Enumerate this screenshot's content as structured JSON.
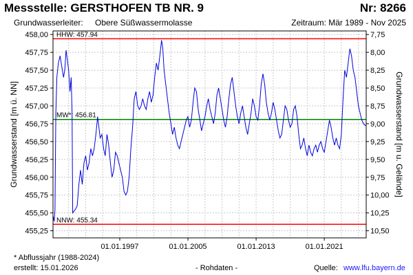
{
  "header": {
    "title": "Messstelle: GERSTHOFEN TB NR. 9",
    "nr": "Nr: 8266",
    "aquifer_label": "Grundwasserleiter:",
    "aquifer_value": "Obere Süßwassermolasse",
    "period": "Zeitraum: Mär 1989 - Nov 2025"
  },
  "footer": {
    "footnote": "* Abflussjahr (1988-2024)",
    "created": "erstellt:  15.01.2026",
    "rawdata": "- Rohdaten -",
    "source_label": "Quelle:",
    "source_link": "www.lfu.bayern.de"
  },
  "colors": {
    "series": "#0000dd",
    "hhw_nnw": "#ff0000",
    "mw": "#008000",
    "grid": "#c8c8c8",
    "link": "#1a1aff"
  },
  "chart_data": {
    "type": "line",
    "ylabel": "Grundwasserstand [m ü. NN]",
    "y2label": "Grundwasserstand [m u. Gelände]",
    "ylim": [
      455.15,
      458.05
    ],
    "y2lim": [
      10.6,
      7.7
    ],
    "grid": true,
    "y_ticks": [
      "455,25",
      "455,50",
      "455,75",
      "456,00",
      "456,25",
      "456,50",
      "456,75",
      "457,00",
      "457,25",
      "457,50",
      "457,75",
      "458,00"
    ],
    "y2_ticks": [
      "7,75",
      "8,00",
      "8,25",
      "8,50",
      "8,75",
      "9,00",
      "9,25",
      "9,50",
      "9,75",
      "10,00",
      "10,25",
      "10,50"
    ],
    "x_ticks": [
      "01.01.1997",
      "01.01.2005",
      "01.01.2013",
      "01.01.2021"
    ],
    "x_range": [
      "1989-03",
      "2025-11"
    ],
    "reference_lines": [
      {
        "label": "HHW: 457.94",
        "value": 457.94
      },
      {
        "label": "MW*: 456.81",
        "value": 456.81
      },
      {
        "label": "NNW: 455.34",
        "value": 455.34
      }
    ],
    "series": [
      {
        "points": [
          [
            1989.2,
            455.45
          ],
          [
            1989.3,
            455.38
          ],
          [
            1989.4,
            455.55
          ],
          [
            1989.5,
            456.9
          ],
          [
            1989.62,
            457.4
          ],
          [
            1989.8,
            457.6
          ],
          [
            1990.0,
            457.7
          ],
          [
            1990.2,
            457.55
          ],
          [
            1990.4,
            457.4
          ],
          [
            1990.55,
            457.5
          ],
          [
            1990.7,
            457.78
          ],
          [
            1990.85,
            457.65
          ],
          [
            1991.0,
            457.5
          ],
          [
            1991.15,
            457.2
          ],
          [
            1991.3,
            457.4
          ],
          [
            1991.4,
            456.9
          ],
          [
            1991.48,
            455.5
          ],
          [
            1991.6,
            455.52
          ],
          [
            1991.8,
            455.55
          ],
          [
            1992.0,
            455.6
          ],
          [
            1992.2,
            455.9
          ],
          [
            1992.4,
            456.1
          ],
          [
            1992.6,
            455.9
          ],
          [
            1992.8,
            456.2
          ],
          [
            1993.0,
            456.3
          ],
          [
            1993.2,
            456.1
          ],
          [
            1993.4,
            456.2
          ],
          [
            1993.6,
            456.4
          ],
          [
            1993.8,
            456.3
          ],
          [
            1994.0,
            456.4
          ],
          [
            1994.2,
            456.6
          ],
          [
            1994.4,
            456.85
          ],
          [
            1994.55,
            456.7
          ],
          [
            1994.7,
            456.55
          ],
          [
            1994.9,
            456.6
          ],
          [
            1995.1,
            456.4
          ],
          [
            1995.3,
            456.3
          ],
          [
            1995.5,
            456.6
          ],
          [
            1995.7,
            456.45
          ],
          [
            1995.9,
            456.2
          ],
          [
            1996.1,
            456.0
          ],
          [
            1996.3,
            456.1
          ],
          [
            1996.5,
            456.35
          ],
          [
            1996.7,
            456.3
          ],
          [
            1996.9,
            456.2
          ],
          [
            1997.1,
            456.1
          ],
          [
            1997.3,
            456.0
          ],
          [
            1997.5,
            455.8
          ],
          [
            1997.7,
            455.75
          ],
          [
            1997.9,
            455.8
          ],
          [
            1998.1,
            456.0
          ],
          [
            1998.3,
            456.4
          ],
          [
            1998.5,
            456.7
          ],
          [
            1998.7,
            457.1
          ],
          [
            1998.9,
            457.2
          ],
          [
            1999.1,
            457.0
          ],
          [
            1999.3,
            456.95
          ],
          [
            1999.5,
            457.0
          ],
          [
            1999.7,
            457.1
          ],
          [
            1999.9,
            457.0
          ],
          [
            2000.1,
            456.95
          ],
          [
            2000.3,
            457.1
          ],
          [
            2000.5,
            457.2
          ],
          [
            2000.7,
            457.05
          ],
          [
            2000.9,
            457.15
          ],
          [
            2001.1,
            457.4
          ],
          [
            2001.3,
            457.6
          ],
          [
            2001.5,
            457.5
          ],
          [
            2001.7,
            457.7
          ],
          [
            2001.9,
            457.92
          ],
          [
            2002.05,
            457.8
          ],
          [
            2002.2,
            457.5
          ],
          [
            2002.4,
            457.3
          ],
          [
            2002.6,
            457.1
          ],
          [
            2002.8,
            456.9
          ],
          [
            2003.0,
            456.75
          ],
          [
            2003.2,
            456.6
          ],
          [
            2003.4,
            456.7
          ],
          [
            2003.6,
            456.55
          ],
          [
            2003.8,
            456.45
          ],
          [
            2004.0,
            456.4
          ],
          [
            2004.2,
            456.5
          ],
          [
            2004.4,
            456.6
          ],
          [
            2004.6,
            456.7
          ],
          [
            2004.8,
            456.8
          ],
          [
            2005.0,
            456.85
          ],
          [
            2005.2,
            456.7
          ],
          [
            2005.4,
            456.8
          ],
          [
            2005.6,
            457.05
          ],
          [
            2005.8,
            457.25
          ],
          [
            2006.0,
            457.2
          ],
          [
            2006.2,
            456.95
          ],
          [
            2006.4,
            456.8
          ],
          [
            2006.6,
            456.65
          ],
          [
            2006.8,
            456.75
          ],
          [
            2007.0,
            456.85
          ],
          [
            2007.2,
            457.0
          ],
          [
            2007.4,
            457.1
          ],
          [
            2007.6,
            456.95
          ],
          [
            2007.8,
            456.85
          ],
          [
            2008.0,
            456.75
          ],
          [
            2008.2,
            456.9
          ],
          [
            2008.4,
            457.15
          ],
          [
            2008.6,
            457.25
          ],
          [
            2008.8,
            457.1
          ],
          [
            2009.0,
            456.95
          ],
          [
            2009.2,
            456.8
          ],
          [
            2009.4,
            456.7
          ],
          [
            2009.6,
            456.85
          ],
          [
            2009.8,
            457.1
          ],
          [
            2010.0,
            457.3
          ],
          [
            2010.2,
            457.4
          ],
          [
            2010.4,
            457.2
          ],
          [
            2010.6,
            457.0
          ],
          [
            2010.8,
            456.85
          ],
          [
            2011.0,
            456.75
          ],
          [
            2011.2,
            456.9
          ],
          [
            2011.4,
            457.0
          ],
          [
            2011.6,
            456.85
          ],
          [
            2011.8,
            456.7
          ],
          [
            2012.0,
            456.6
          ],
          [
            2012.2,
            456.75
          ],
          [
            2012.4,
            456.9
          ],
          [
            2012.6,
            457.1
          ],
          [
            2012.8,
            457.0
          ],
          [
            2013.0,
            456.85
          ],
          [
            2013.2,
            456.8
          ],
          [
            2013.4,
            457.0
          ],
          [
            2013.6,
            457.3
          ],
          [
            2013.8,
            457.45
          ],
          [
            2014.0,
            457.3
          ],
          [
            2014.2,
            457.05
          ],
          [
            2014.4,
            456.9
          ],
          [
            2014.6,
            456.8
          ],
          [
            2014.8,
            456.9
          ],
          [
            2015.0,
            457.05
          ],
          [
            2015.2,
            456.95
          ],
          [
            2015.4,
            456.8
          ],
          [
            2015.6,
            456.65
          ],
          [
            2015.8,
            456.55
          ],
          [
            2016.0,
            456.6
          ],
          [
            2016.2,
            456.8
          ],
          [
            2016.4,
            457.0
          ],
          [
            2016.6,
            456.95
          ],
          [
            2016.8,
            456.8
          ],
          [
            2017.0,
            456.7
          ],
          [
            2017.2,
            456.75
          ],
          [
            2017.4,
            456.95
          ],
          [
            2017.6,
            457.0
          ],
          [
            2017.8,
            456.85
          ],
          [
            2018.0,
            456.6
          ],
          [
            2018.2,
            456.4
          ],
          [
            2018.4,
            456.45
          ],
          [
            2018.6,
            456.55
          ],
          [
            2018.8,
            456.4
          ],
          [
            2019.0,
            456.3
          ],
          [
            2019.2,
            456.45
          ],
          [
            2019.4,
            456.35
          ],
          [
            2019.6,
            456.3
          ],
          [
            2019.8,
            456.4
          ],
          [
            2020.0,
            456.45
          ],
          [
            2020.2,
            456.35
          ],
          [
            2020.4,
            456.45
          ],
          [
            2020.6,
            456.5
          ],
          [
            2020.8,
            456.4
          ],
          [
            2021.0,
            456.35
          ],
          [
            2021.2,
            456.5
          ],
          [
            2021.4,
            456.65
          ],
          [
            2021.6,
            456.8
          ],
          [
            2021.8,
            456.7
          ],
          [
            2022.0,
            456.55
          ],
          [
            2022.2,
            456.45
          ],
          [
            2022.4,
            456.55
          ],
          [
            2022.6,
            456.45
          ],
          [
            2022.8,
            456.4
          ],
          [
            2023.0,
            456.6
          ],
          [
            2023.2,
            457.1
          ],
          [
            2023.4,
            457.5
          ],
          [
            2023.6,
            457.4
          ],
          [
            2023.8,
            457.6
          ],
          [
            2024.0,
            457.8
          ],
          [
            2024.2,
            457.7
          ],
          [
            2024.4,
            457.5
          ],
          [
            2024.6,
            457.4
          ],
          [
            2024.8,
            457.2
          ],
          [
            2025.0,
            457.0
          ],
          [
            2025.2,
            456.9
          ],
          [
            2025.4,
            456.8
          ],
          [
            2025.6,
            456.75
          ],
          [
            2025.85,
            456.72
          ]
        ]
      }
    ]
  }
}
